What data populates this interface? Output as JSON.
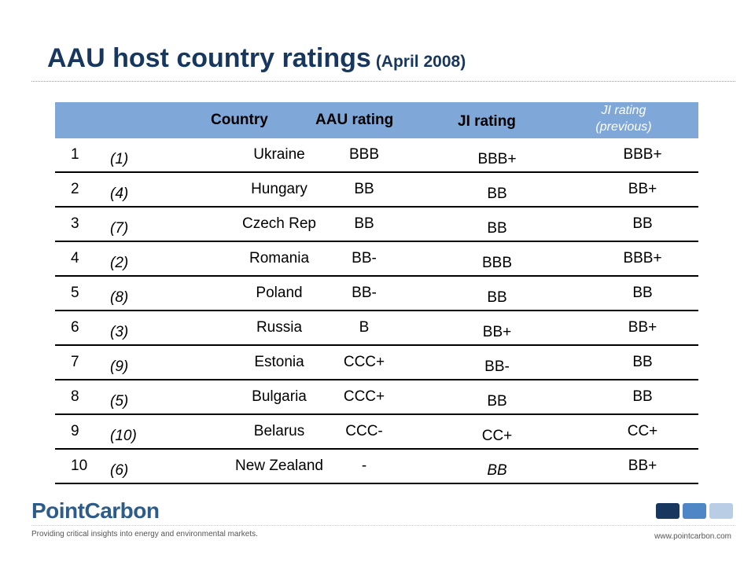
{
  "title": {
    "main": "AAU host country ratings",
    "sub": "(April 2008)"
  },
  "columns": {
    "country": "Country",
    "aau": "AAU rating",
    "ji": "JI rating",
    "ji_prev_line1": "JI rating",
    "ji_prev_line2": "(previous)"
  },
  "rows": [
    {
      "rank": "1",
      "prev": "(1)",
      "country": "Ukraine",
      "aau": "BBB",
      "ji": "BBB+",
      "ji_prev": "BBB+"
    },
    {
      "rank": "2",
      "prev": "(4)",
      "country": "Hungary",
      "aau": "BB",
      "ji": "BB",
      "ji_prev": "BB+"
    },
    {
      "rank": "3",
      "prev": "(7)",
      "country": "Czech Rep",
      "aau": "BB",
      "ji": "BB",
      "ji_prev": "BB"
    },
    {
      "rank": "4",
      "prev": "(2)",
      "country": "Romania",
      "aau": "BB-",
      "ji": "BBB",
      "ji_prev": "BBB+"
    },
    {
      "rank": "5",
      "prev": "(8)",
      "country": "Poland",
      "aau": "BB-",
      "ji": "BB",
      "ji_prev": "BB"
    },
    {
      "rank": "6",
      "prev": "(3)",
      "country": "Russia",
      "aau": "B",
      "ji": "BB+",
      "ji_prev": "BB+"
    },
    {
      "rank": "7",
      "prev": "(9)",
      "country": "Estonia",
      "aau": "CCC+",
      "ji": "BB-",
      "ji_prev": "BB"
    },
    {
      "rank": "8",
      "prev": "(5)",
      "country": "Bulgaria",
      "aau": "CCC+",
      "ji": "BB",
      "ji_prev": "BB"
    },
    {
      "rank": "9",
      "prev": "(10)",
      "country": "Belarus",
      "aau": "CCC-",
      "ji": "CC+",
      "ji_prev": "CC+"
    },
    {
      "rank": "10",
      "prev": "(6)",
      "country": "New Zealand",
      "aau": "-",
      "ji": "BB",
      "ji_prev": "BB+"
    }
  ],
  "footer": {
    "logo": "PointCarbon",
    "tagline": "Providing critical insights into energy and environmental markets.",
    "url": "www.pointcarbon.com"
  },
  "colors": {
    "title": "#17375e",
    "header_fill": "#7fa8d8",
    "logo": "#2e5c8a",
    "square_dark": "#17375e",
    "square_mid": "#4f86c6",
    "square_light": "#b9cde5"
  }
}
